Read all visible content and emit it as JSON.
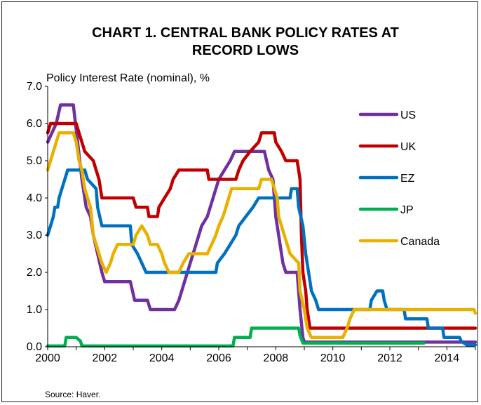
{
  "chart_data": {
    "type": "line",
    "title_line1": "CHART 1. CENTRAL BANK POLICY RATES AT",
    "title_line2": "RECORD LOWS",
    "ylabel": "Policy Interest Rate (nominal), %",
    "source": "Source: Haver.",
    "xlim": [
      2000,
      2015
    ],
    "ylim": [
      0,
      7
    ],
    "x_ticks": [
      "2000",
      "2002",
      "2004",
      "2006",
      "2008",
      "2010",
      "2012",
      "2014"
    ],
    "y_ticks": [
      "0.0",
      "1.0",
      "2.0",
      "3.0",
      "4.0",
      "5.0",
      "6.0",
      "7.0"
    ],
    "grid": false,
    "legend_position": "right",
    "series": [
      {
        "name": "US",
        "color": "#7030a0",
        "points": [
          [
            2000.0,
            5.5
          ],
          [
            2000.15,
            5.75
          ],
          [
            2000.3,
            6.0
          ],
          [
            2000.45,
            6.5
          ],
          [
            2000.9,
            6.5
          ],
          [
            2001.05,
            5.5
          ],
          [
            2001.2,
            4.5
          ],
          [
            2001.35,
            3.75
          ],
          [
            2001.5,
            3.5
          ],
          [
            2001.6,
            3.0
          ],
          [
            2001.75,
            2.5
          ],
          [
            2001.9,
            2.0
          ],
          [
            2002.0,
            1.75
          ],
          [
            2002.9,
            1.75
          ],
          [
            2003.05,
            1.25
          ],
          [
            2003.5,
            1.25
          ],
          [
            2003.6,
            1.0
          ],
          [
            2004.45,
            1.0
          ],
          [
            2004.6,
            1.25
          ],
          [
            2004.8,
            1.75
          ],
          [
            2005.0,
            2.25
          ],
          [
            2005.2,
            2.75
          ],
          [
            2005.4,
            3.25
          ],
          [
            2005.6,
            3.5
          ],
          [
            2005.8,
            4.0
          ],
          [
            2006.0,
            4.5
          ],
          [
            2006.2,
            4.75
          ],
          [
            2006.4,
            5.0
          ],
          [
            2006.55,
            5.25
          ],
          [
            2007.6,
            5.25
          ],
          [
            2007.75,
            4.75
          ],
          [
            2007.9,
            4.5
          ],
          [
            2008.0,
            3.5
          ],
          [
            2008.1,
            3.0
          ],
          [
            2008.25,
            2.25
          ],
          [
            2008.35,
            2.0
          ],
          [
            2008.75,
            2.0
          ],
          [
            2008.85,
            1.0
          ],
          [
            2008.95,
            0.25
          ],
          [
            2009.0,
            0.125
          ],
          [
            2015.0,
            0.125
          ]
        ]
      },
      {
        "name": "UK",
        "color": "#c00000",
        "points": [
          [
            2000.0,
            5.75
          ],
          [
            2000.1,
            6.0
          ],
          [
            2001.0,
            6.0
          ],
          [
            2001.1,
            5.75
          ],
          [
            2001.2,
            5.5
          ],
          [
            2001.3,
            5.25
          ],
          [
            2001.6,
            5.0
          ],
          [
            2001.7,
            4.75
          ],
          [
            2001.8,
            4.5
          ],
          [
            2001.9,
            4.0
          ],
          [
            2003.0,
            4.0
          ],
          [
            2003.1,
            3.75
          ],
          [
            2003.5,
            3.75
          ],
          [
            2003.55,
            3.5
          ],
          [
            2003.85,
            3.5
          ],
          [
            2003.9,
            3.75
          ],
          [
            2004.1,
            4.0
          ],
          [
            2004.3,
            4.25
          ],
          [
            2004.4,
            4.5
          ],
          [
            2004.6,
            4.75
          ],
          [
            2005.6,
            4.75
          ],
          [
            2005.65,
            4.5
          ],
          [
            2006.6,
            4.5
          ],
          [
            2006.7,
            4.75
          ],
          [
            2006.85,
            5.0
          ],
          [
            2007.1,
            5.25
          ],
          [
            2007.4,
            5.5
          ],
          [
            2007.5,
            5.75
          ],
          [
            2007.95,
            5.75
          ],
          [
            2008.0,
            5.5
          ],
          [
            2008.2,
            5.25
          ],
          [
            2008.35,
            5.0
          ],
          [
            2008.75,
            5.0
          ],
          [
            2008.85,
            4.5
          ],
          [
            2008.9,
            3.0
          ],
          [
            2008.95,
            2.0
          ],
          [
            2009.05,
            1.5
          ],
          [
            2009.1,
            1.0
          ],
          [
            2009.2,
            0.5
          ],
          [
            2015.0,
            0.5
          ]
        ]
      },
      {
        "name": "EZ",
        "color": "#0070c0",
        "points": [
          [
            2000.0,
            3.0
          ],
          [
            2000.1,
            3.25
          ],
          [
            2000.2,
            3.5
          ],
          [
            2000.25,
            3.75
          ],
          [
            2000.35,
            3.75
          ],
          [
            2000.4,
            4.0
          ],
          [
            2000.5,
            4.25
          ],
          [
            2000.6,
            4.5
          ],
          [
            2000.7,
            4.75
          ],
          [
            2001.3,
            4.75
          ],
          [
            2001.4,
            4.5
          ],
          [
            2001.7,
            4.25
          ],
          [
            2001.75,
            3.75
          ],
          [
            2001.9,
            3.25
          ],
          [
            2002.9,
            3.25
          ],
          [
            2002.95,
            2.75
          ],
          [
            2003.15,
            2.5
          ],
          [
            2003.45,
            2.0
          ],
          [
            2005.9,
            2.0
          ],
          [
            2005.95,
            2.25
          ],
          [
            2006.2,
            2.5
          ],
          [
            2006.4,
            2.75
          ],
          [
            2006.6,
            3.0
          ],
          [
            2006.7,
            3.25
          ],
          [
            2006.95,
            3.5
          ],
          [
            2007.2,
            3.75
          ],
          [
            2007.4,
            4.0
          ],
          [
            2008.5,
            4.0
          ],
          [
            2008.55,
            4.25
          ],
          [
            2008.75,
            4.25
          ],
          [
            2008.8,
            3.75
          ],
          [
            2008.95,
            3.25
          ],
          [
            2009.05,
            2.5
          ],
          [
            2009.15,
            2.0
          ],
          [
            2009.25,
            1.5
          ],
          [
            2009.4,
            1.25
          ],
          [
            2009.5,
            1.0
          ],
          [
            2011.3,
            1.0
          ],
          [
            2011.35,
            1.25
          ],
          [
            2011.55,
            1.5
          ],
          [
            2011.75,
            1.5
          ],
          [
            2011.8,
            1.25
          ],
          [
            2011.9,
            1.0
          ],
          [
            2012.5,
            1.0
          ],
          [
            2012.55,
            0.75
          ],
          [
            2013.3,
            0.75
          ],
          [
            2013.35,
            0.5
          ],
          [
            2013.85,
            0.5
          ],
          [
            2013.9,
            0.25
          ],
          [
            2014.45,
            0.25
          ],
          [
            2014.5,
            0.15
          ],
          [
            2014.7,
            0.05
          ],
          [
            2015.0,
            0.05
          ]
        ]
      },
      {
        "name": "JP",
        "color": "#00b050",
        "points": [
          [
            2000.0,
            0.02
          ],
          [
            2000.6,
            0.02
          ],
          [
            2000.65,
            0.25
          ],
          [
            2001.0,
            0.25
          ],
          [
            2001.15,
            0.15
          ],
          [
            2001.2,
            0.02
          ],
          [
            2006.5,
            0.02
          ],
          [
            2006.55,
            0.25
          ],
          [
            2007.1,
            0.25
          ],
          [
            2007.15,
            0.5
          ],
          [
            2008.8,
            0.5
          ],
          [
            2008.85,
            0.3
          ],
          [
            2008.95,
            0.1
          ],
          [
            2013.2,
            0.1
          ]
        ]
      },
      {
        "name": "Canada",
        "color": "#e8b100",
        "points": [
          [
            2000.0,
            4.75
          ],
          [
            2000.1,
            5.0
          ],
          [
            2000.2,
            5.25
          ],
          [
            2000.3,
            5.5
          ],
          [
            2000.4,
            5.75
          ],
          [
            2000.9,
            5.75
          ],
          [
            2001.0,
            5.5
          ],
          [
            2001.1,
            5.0
          ],
          [
            2001.2,
            4.75
          ],
          [
            2001.3,
            4.25
          ],
          [
            2001.4,
            4.0
          ],
          [
            2001.5,
            3.75
          ],
          [
            2001.6,
            3.0
          ],
          [
            2001.8,
            2.5
          ],
          [
            2001.9,
            2.25
          ],
          [
            2002.05,
            2.0
          ],
          [
            2002.2,
            2.25
          ],
          [
            2002.3,
            2.5
          ],
          [
            2002.45,
            2.75
          ],
          [
            2003.0,
            2.75
          ],
          [
            2003.1,
            3.0
          ],
          [
            2003.3,
            3.25
          ],
          [
            2003.5,
            3.0
          ],
          [
            2003.6,
            2.75
          ],
          [
            2003.85,
            2.75
          ],
          [
            2004.0,
            2.5
          ],
          [
            2004.1,
            2.25
          ],
          [
            2004.25,
            2.0
          ],
          [
            2004.6,
            2.0
          ],
          [
            2004.75,
            2.25
          ],
          [
            2004.95,
            2.5
          ],
          [
            2005.6,
            2.5
          ],
          [
            2005.75,
            2.75
          ],
          [
            2005.9,
            3.0
          ],
          [
            2006.0,
            3.25
          ],
          [
            2006.15,
            3.5
          ],
          [
            2006.25,
            3.75
          ],
          [
            2006.35,
            4.0
          ],
          [
            2006.45,
            4.25
          ],
          [
            2007.4,
            4.25
          ],
          [
            2007.5,
            4.5
          ],
          [
            2007.85,
            4.5
          ],
          [
            2007.95,
            4.25
          ],
          [
            2008.05,
            4.0
          ],
          [
            2008.1,
            3.5
          ],
          [
            2008.3,
            3.0
          ],
          [
            2008.5,
            2.5
          ],
          [
            2008.8,
            2.25
          ],
          [
            2008.85,
            1.5
          ],
          [
            2009.0,
            1.0
          ],
          [
            2009.1,
            0.5
          ],
          [
            2009.25,
            0.25
          ],
          [
            2010.35,
            0.25
          ],
          [
            2010.5,
            0.5
          ],
          [
            2010.6,
            0.75
          ],
          [
            2010.75,
            1.0
          ],
          [
            2014.95,
            1.0
          ],
          [
            2015.0,
            0.9
          ]
        ]
      }
    ]
  }
}
